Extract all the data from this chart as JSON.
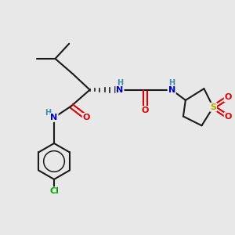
{
  "background_color": "#e8e8e8",
  "bond_color": "#1a1a1a",
  "atom_colors": {
    "N": "#0000cc",
    "O": "#dd0000",
    "S": "#aaaa00",
    "Cl": "#00aa00",
    "H": "#4488aa"
  },
  "figsize": [
    3.0,
    3.0
  ],
  "dpi": 100,
  "xlim": [
    0,
    10
  ],
  "ylim": [
    0,
    10
  ]
}
